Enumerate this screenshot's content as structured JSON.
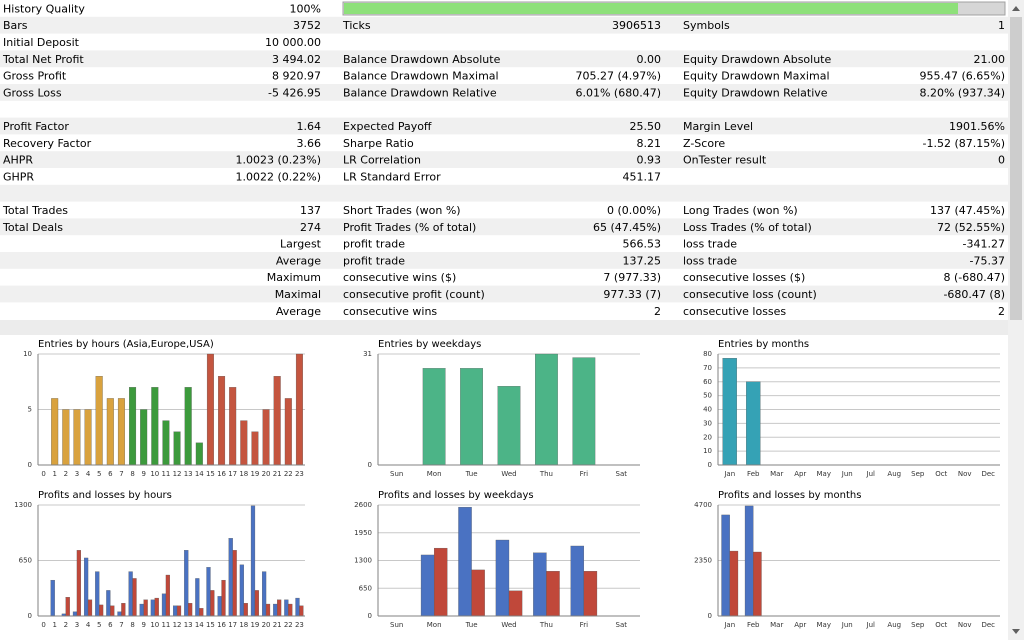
{
  "table": {
    "rows": [
      [
        "History Quality",
        "100%"
      ],
      [
        "Bars",
        "3752",
        "Ticks",
        "3906513",
        "Symbols",
        "1"
      ],
      [
        "Initial Deposit",
        "10 000.00"
      ],
      [
        "Total Net Profit",
        "3 494.02",
        "Balance Drawdown Absolute",
        "0.00",
        "Equity Drawdown Absolute",
        "21.00"
      ],
      [
        "Gross Profit",
        "8 920.97",
        "Balance Drawdown Maximal",
        "705.27 (4.97%)",
        "Equity Drawdown Maximal",
        "955.47 (6.65%)"
      ],
      [
        "Gross Loss",
        "-5 426.95",
        "Balance Drawdown Relative",
        "6.01% (680.47)",
        "Equity Drawdown Relative",
        "8.20% (937.34)"
      ],
      [],
      [
        "Profit Factor",
        "1.64",
        "Expected Payoff",
        "25.50",
        "Margin Level",
        "1901.56%"
      ],
      [
        "Recovery Factor",
        "3.66",
        "Sharpe Ratio",
        "8.21",
        "Z-Score",
        "-1.52 (87.15%)"
      ],
      [
        "AHPR",
        "1.0023 (0.23%)",
        "LR Correlation",
        "0.93",
        "OnTester result",
        "0"
      ],
      [
        "GHPR",
        "1.0022 (0.22%)",
        "LR Standard Error",
        "451.17"
      ],
      [],
      [
        "Total Trades",
        "137",
        "Short Trades (won %)",
        "0 (0.00%)",
        "Long Trades (won %)",
        "137 (47.45%)"
      ],
      [
        "Total Deals",
        "274",
        "Profit Trades (% of total)",
        "65 (47.45%)",
        "Loss Trades (% of total)",
        "72 (52.55%)"
      ],
      [
        null,
        "Largest",
        "profit trade",
        "566.53",
        "loss trade",
        "-341.27"
      ],
      [
        null,
        "Average",
        "profit trade",
        "137.25",
        "loss trade",
        "-75.37"
      ],
      [
        null,
        "Maximum",
        "consecutive wins ($)",
        "7 (977.33)",
        "consecutive losses ($)",
        "8 (-680.47)"
      ],
      [
        null,
        "Maximal",
        "consecutive profit (count)",
        "977.33 (7)",
        "consecutive loss (count)",
        "-680.47 (8)"
      ],
      [
        null,
        "Average",
        "consecutive wins",
        "2",
        "consecutive losses",
        "2"
      ]
    ]
  },
  "chart_data": [
    {
      "type": "bar",
      "title": "Entries by hours (Asia,Europe,USA)",
      "categories": [
        "0",
        "1",
        "2",
        "3",
        "4",
        "5",
        "6",
        "7",
        "8",
        "9",
        "10",
        "11",
        "12",
        "13",
        "14",
        "15",
        "16",
        "17",
        "18",
        "19",
        "20",
        "21",
        "22",
        "23"
      ],
      "values": [
        0,
        6,
        5,
        5,
        5,
        8,
        6,
        6,
        7,
        5,
        7,
        4,
        3,
        7,
        2,
        10,
        8,
        7,
        4,
        3,
        5,
        8,
        6,
        10
      ],
      "colors": [
        "#d9a23e",
        "#d9a23e",
        "#d9a23e",
        "#d9a23e",
        "#d9a23e",
        "#d9a23e",
        "#d9a23e",
        "#d9a23e",
        "#3c9a3c",
        "#3c9a3c",
        "#3c9a3c",
        "#3c9a3c",
        "#3c9a3c",
        "#3c9a3c",
        "#3c9a3c",
        "#c4553f",
        "#c4553f",
        "#c4553f",
        "#c4553f",
        "#c4553f",
        "#c4553f",
        "#c4553f",
        "#c4553f",
        "#c4553f"
      ],
      "ylim": [
        0,
        10
      ],
      "yticks": [
        0,
        5,
        10
      ],
      "grid": true
    },
    {
      "type": "bar",
      "title": "Entries by weekdays",
      "categories": [
        "Sun",
        "Mon",
        "Tue",
        "Wed",
        "Thu",
        "Fri",
        "Sat"
      ],
      "values": [
        0,
        27,
        27,
        22,
        31,
        30,
        0
      ],
      "color": "#4cb487",
      "ylim": [
        0,
        31
      ],
      "yticks": [
        0,
        31
      ],
      "grid": true
    },
    {
      "type": "bar",
      "title": "Entries by months",
      "categories": [
        "Jan",
        "Feb",
        "Mar",
        "Apr",
        "May",
        "Jun",
        "Jul",
        "Aug",
        "Sep",
        "Oct",
        "Nov",
        "Dec"
      ],
      "values": [
        77,
        60,
        0,
        0,
        0,
        0,
        0,
        0,
        0,
        0,
        0,
        0
      ],
      "color": "#35a2b5",
      "ylim": [
        0,
        80
      ],
      "yticks": [
        0,
        10,
        20,
        30,
        40,
        50,
        60,
        70,
        80
      ],
      "grid": true
    },
    {
      "type": "bar",
      "title": "Profits and losses by hours",
      "categories": [
        "0",
        "1",
        "2",
        "3",
        "4",
        "5",
        "6",
        "7",
        "8",
        "9",
        "10",
        "11",
        "12",
        "13",
        "14",
        "15",
        "16",
        "17",
        "18",
        "19",
        "20",
        "21",
        "22",
        "23"
      ],
      "series": [
        {
          "color": "#4a72c2",
          "values": [
            0,
            420,
            25,
            50,
            680,
            520,
            300,
            50,
            520,
            140,
            190,
            260,
            120,
            770,
            440,
            570,
            230,
            910,
            600,
            1290,
            520,
            140,
            190,
            210
          ]
        },
        {
          "color": "#c0483a",
          "values": [
            0,
            0,
            220,
            770,
            190,
            130,
            120,
            150,
            440,
            190,
            210,
            480,
            120,
            150,
            90,
            300,
            420,
            770,
            150,
            300,
            140,
            190,
            140,
            120
          ]
        }
      ],
      "ylim": [
        0,
        1300
      ],
      "yticks": [
        0,
        650,
        1300
      ],
      "grid": true
    },
    {
      "type": "bar",
      "title": "Profits and losses by weekdays",
      "categories": [
        "Sun",
        "Mon",
        "Tue",
        "Wed",
        "Thu",
        "Fri",
        "Sat"
      ],
      "series": [
        {
          "color": "#4a72c2",
          "values": [
            0,
            1430,
            2550,
            1780,
            1480,
            1640,
            0
          ]
        },
        {
          "color": "#c0483a",
          "values": [
            0,
            1590,
            1080,
            590,
            1050,
            1050,
            0
          ]
        }
      ],
      "ylim": [
        0,
        2600
      ],
      "yticks": [
        0,
        650,
        1300,
        1950,
        2600
      ],
      "grid": true
    },
    {
      "type": "bar",
      "title": "Profits and losses by months",
      "categories": [
        "Jan",
        "Feb",
        "Mar",
        "Apr",
        "May",
        "Jun",
        "Jul",
        "Aug",
        "Sep",
        "Oct",
        "Nov",
        "Dec"
      ],
      "series": [
        {
          "color": "#4a72c2",
          "values": [
            4280,
            4660,
            0,
            0,
            0,
            0,
            0,
            0,
            0,
            0,
            0,
            0
          ]
        },
        {
          "color": "#c0483a",
          "values": [
            2750,
            2710,
            0,
            0,
            0,
            0,
            0,
            0,
            0,
            0,
            0,
            0
          ]
        }
      ],
      "ylim": [
        0,
        4700
      ],
      "yticks": [
        0,
        2350,
        4700
      ],
      "grid": true
    }
  ]
}
